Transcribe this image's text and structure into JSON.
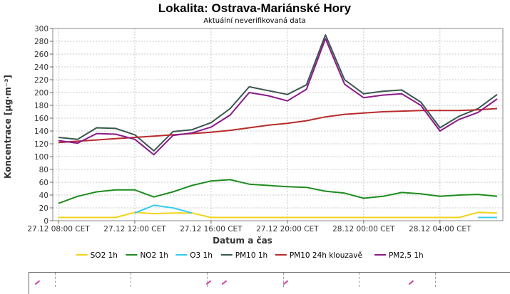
{
  "chart_data": {
    "type": "line",
    "title": "Lokalita: Ostrava-Mariánské Hory",
    "subtitle": "Aktuální neverifikovaná data",
    "xlabel": "Datum a čas",
    "ylabel": "Koncentrace [µg·m⁻³]",
    "ylim": [
      0,
      300
    ],
    "yticks": [
      0,
      20,
      40,
      60,
      80,
      100,
      120,
      140,
      160,
      180,
      200,
      220,
      240,
      260,
      280,
      300
    ],
    "x_hours": [
      0,
      1,
      2,
      3,
      4,
      5,
      6,
      7,
      8,
      9,
      10,
      11,
      12,
      13,
      14,
      15,
      16,
      17,
      18,
      19,
      20,
      21,
      22,
      23
    ],
    "x_tick_labels": [
      {
        "hour": 0,
        "label": "27.12 08:00 CET"
      },
      {
        "hour": 4,
        "label": "27.12 12:00 CET"
      },
      {
        "hour": 8,
        "label": "27.12 16:00 CET"
      },
      {
        "hour": 12,
        "label": "27.12 20:00 CET"
      },
      {
        "hour": 16,
        "label": "28.12 00:00 CET"
      },
      {
        "hour": 20,
        "label": "28.12 04:00 CET"
      }
    ],
    "grid": true,
    "legend_position": "bottom",
    "series": [
      {
        "name": "SO2 1h",
        "color": "#f2d31a",
        "values": [
          5,
          5,
          5,
          5,
          13,
          11,
          12,
          12,
          5,
          5,
          5,
          5,
          5,
          5,
          5,
          5,
          5,
          5,
          5,
          5,
          5,
          5,
          13,
          12
        ]
      },
      {
        "name": "NO2 1h",
        "color": "#1e8c1e",
        "values": [
          27,
          38,
          45,
          48,
          48,
          37,
          45,
          55,
          62,
          64,
          57,
          55,
          53,
          52,
          46,
          43,
          35,
          38,
          44,
          42,
          38,
          40,
          41,
          38
        ]
      },
      {
        "name": "O3 1h",
        "color": "#33ccee",
        "values": [
          null,
          null,
          null,
          null,
          12,
          24,
          20,
          12,
          null,
          null,
          null,
          null,
          null,
          null,
          null,
          null,
          null,
          null,
          null,
          null,
          null,
          null,
          5,
          5
        ]
      },
      {
        "name": "PM10 1h",
        "color": "#3a5650",
        "values": [
          130,
          127,
          145,
          144,
          134,
          109,
          139,
          142,
          153,
          175,
          209,
          203,
          197,
          212,
          290,
          220,
          198,
          202,
          204,
          185,
          145,
          163,
          175,
          197
        ]
      },
      {
        "name": "PM10 24h klouzavě",
        "color": "#b82b2b",
        "values": [
          122,
          124,
          126,
          128,
          130,
          132,
          134,
          136,
          138,
          141,
          145,
          149,
          152,
          156,
          162,
          166,
          168,
          170,
          171,
          172,
          172,
          172,
          173,
          175
        ]
      },
      {
        "name": "PM2,5 1h",
        "color": "#8b1a8b",
        "values": [
          125,
          121,
          136,
          135,
          127,
          103,
          133,
          137,
          146,
          165,
          200,
          195,
          187,
          205,
          284,
          213,
          192,
          196,
          198,
          180,
          140,
          158,
          169,
          190
        ]
      }
    ]
  }
}
